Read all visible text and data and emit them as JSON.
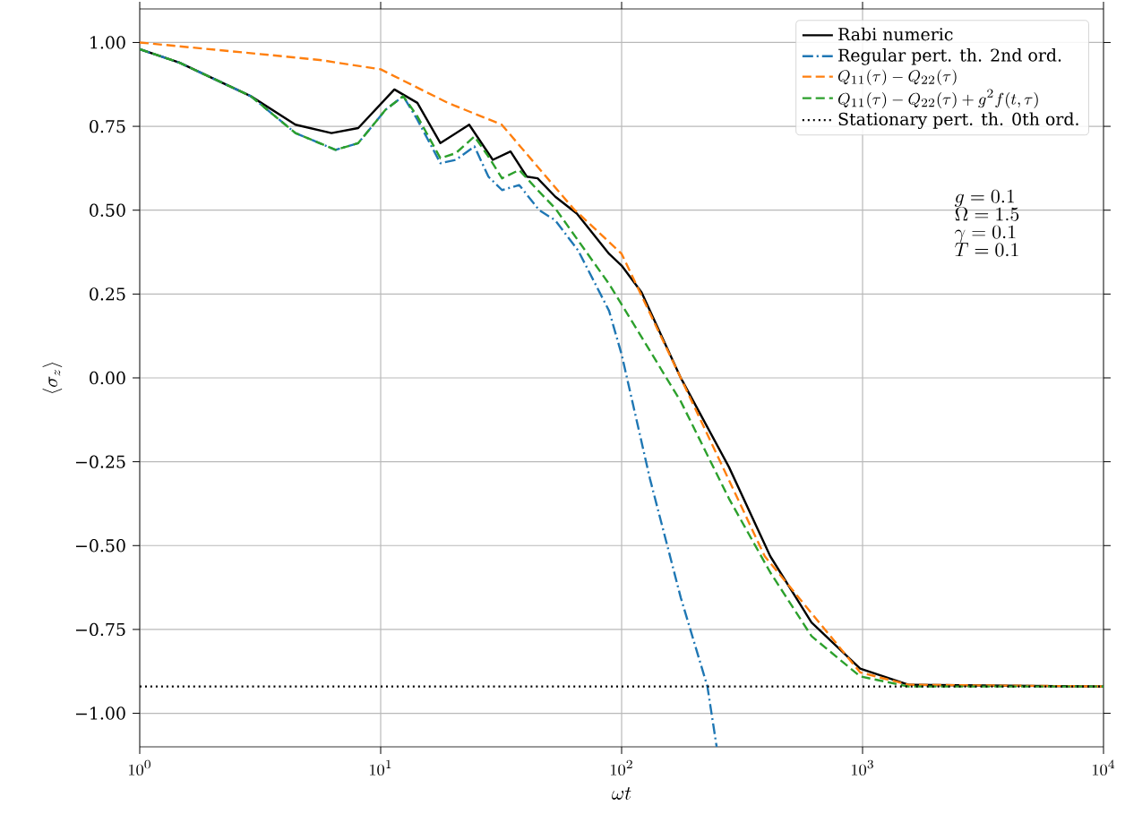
{
  "chart_data": {
    "type": "line",
    "xlabel": "\\omega t",
    "ylabel": "\\langle \\sigma_z \\rangle",
    "log": "x",
    "grid": true,
    "legend": "top right",
    "xlim": [
      1,
      10000
    ],
    "ylim": [
      -1.1,
      1.1
    ],
    "xticks": [
      {
        "value": 1,
        "label": "10^{0}"
      },
      {
        "value": 10,
        "label": "10^{1}"
      },
      {
        "value": 100,
        "label": "10^{2}"
      },
      {
        "value": 1000,
        "label": "10^{3}"
      },
      {
        "value": 10000,
        "label": "10^{4}"
      }
    ],
    "yticks": [
      {
        "value": -1,
        "label": "−1.00"
      },
      {
        "value": -0.75,
        "label": "−0.75"
      },
      {
        "value": -0.5,
        "label": "−0.50"
      },
      {
        "value": -0.25,
        "label": "−0.25"
      },
      {
        "value": 0,
        "label": "0.00"
      },
      {
        "value": 0.25,
        "label": "0.25"
      },
      {
        "value": 0.5,
        "label": "0.50"
      },
      {
        "value": 0.75,
        "label": "0.75"
      },
      {
        "value": 1,
        "label": "1.00"
      }
    ],
    "annotations": [
      "g=0.1",
      "\\Omega=1.5",
      "\\gamma=0.1",
      "T=0.1"
    ],
    "series": [
      {
        "name": "Rabi numeric",
        "color": "#000000",
        "line_style": "solid",
        "x": [
          1,
          1.46,
          2.89,
          4.43,
          6.25,
          8.07,
          11.4,
          14.2,
          17.7,
          23.3,
          29.2,
          34.6,
          40.4,
          44.8,
          53.1,
          65.2,
          88.7,
          100,
          121,
          176,
          279,
          414,
          614,
          977,
          1550,
          10000
        ],
        "values": [
          0.98,
          0.94,
          0.84,
          0.755,
          0.73,
          0.745,
          0.86,
          0.82,
          0.7,
          0.755,
          0.65,
          0.675,
          0.6,
          0.595,
          0.54,
          0.49,
          0.37,
          0.335,
          0.255,
          0.0,
          -0.266,
          -0.532,
          -0.729,
          -0.867,
          -0.915,
          -0.92
        ]
      },
      {
        "name": "Regular pert. th. 2nd ord.",
        "color": "#1f77b4",
        "line_style": "dashdot",
        "x": [
          1,
          1.46,
          2.89,
          4.43,
          6.5,
          8.07,
          10.5,
          12.4,
          14.2,
          17.7,
          20.5,
          24.5,
          28,
          31.9,
          37.6,
          45.5,
          53,
          66,
          88.7,
          100,
          131,
          176,
          227,
          248
        ],
        "values": [
          0.98,
          0.94,
          0.84,
          0.73,
          0.68,
          0.7,
          0.8,
          0.84,
          0.77,
          0.64,
          0.65,
          0.69,
          0.6,
          0.56,
          0.575,
          0.5,
          0.47,
          0.38,
          0.2,
          0.07,
          -0.3,
          -0.655,
          -0.92,
          -1.1
        ]
      },
      {
        "name": "Q_{11}(\\tau)-Q_{22}(\\tau)",
        "color": "#ff7f0e",
        "line_style": "dashed",
        "x": [
          1,
          3.43,
          5.7,
          10,
          19,
          31.8,
          63,
          100,
          176,
          393,
          977,
          1550,
          10000
        ],
        "values": [
          1.0,
          0.963,
          0.947,
          0.92,
          0.82,
          0.755,
          0.505,
          0.37,
          0.0,
          -0.532,
          -0.878,
          -0.915,
          -0.92
        ]
      },
      {
        "name": "Q_{11}(\\tau)-Q_{22}(\\tau)+g^2 f(t,\\tau)",
        "color": "#2ca02c",
        "line_style": "dashed",
        "x": [
          1,
          1.46,
          2.89,
          4.43,
          6.5,
          8.07,
          10.5,
          12.4,
          14.2,
          17.7,
          20.5,
          24.5,
          28,
          31.9,
          37.6,
          44.8,
          53.1,
          88.7,
          176,
          279,
          414,
          614,
          977,
          1550,
          10000
        ],
        "values": [
          0.98,
          0.94,
          0.84,
          0.73,
          0.68,
          0.7,
          0.8,
          0.84,
          0.78,
          0.655,
          0.67,
          0.72,
          0.66,
          0.595,
          0.62,
          0.56,
          0.505,
          0.28,
          -0.07,
          -0.36,
          -0.58,
          -0.77,
          -0.89,
          -0.92,
          -0.92
        ]
      },
      {
        "name": "Stationary pert. th. 0th ord.",
        "color": "#000000",
        "line_style": "dotted",
        "x": [
          1,
          10000
        ],
        "values": [
          -0.92,
          -0.92
        ]
      }
    ]
  }
}
